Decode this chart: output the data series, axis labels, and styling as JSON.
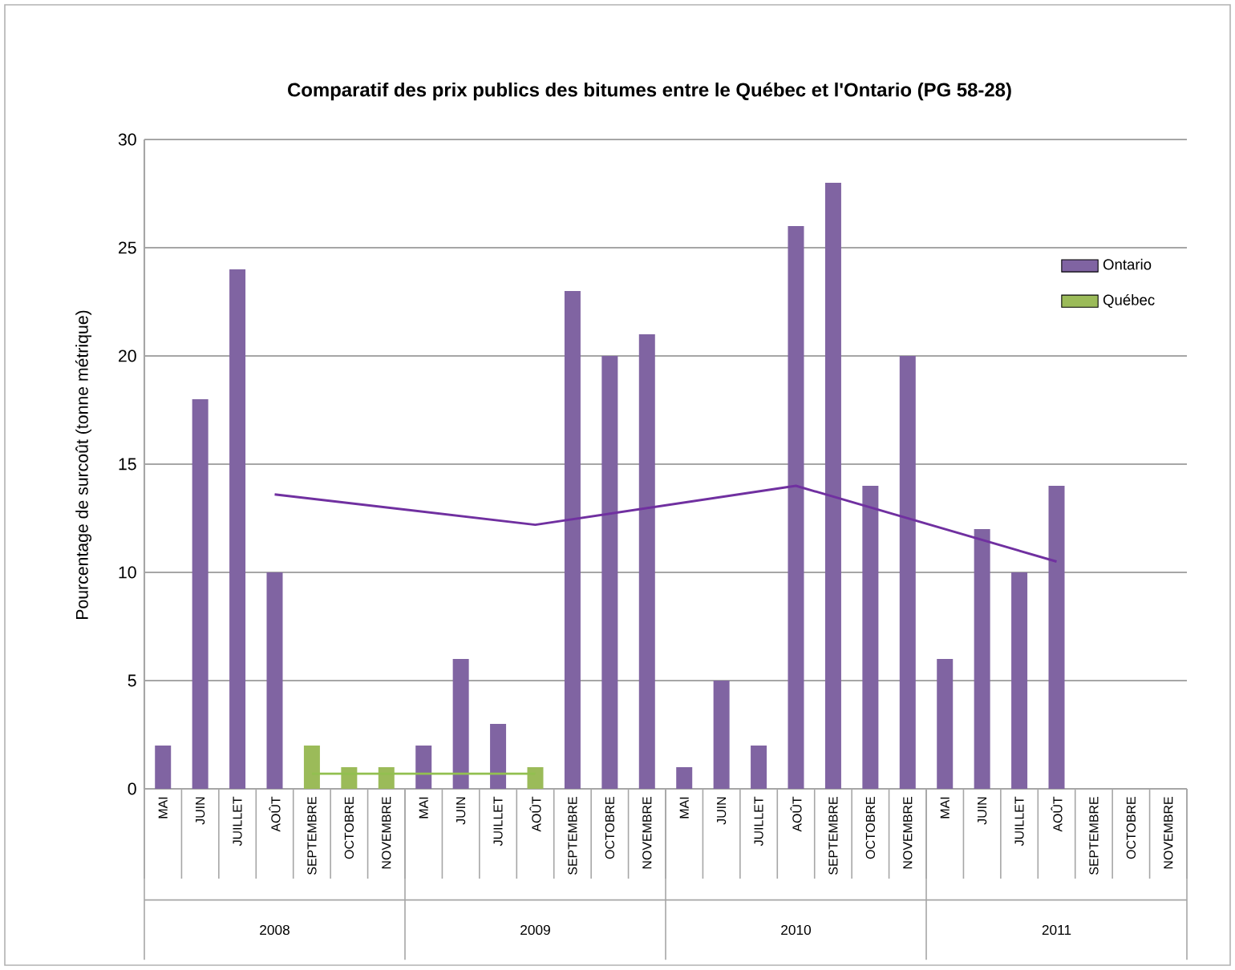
{
  "chart_data": {
    "type": "bar",
    "title": "Comparatif des prix publics des bitumes entre le Québec et l'Ontario (PG 58-28)",
    "ylabel": "Pourcentage de surcoût  (tonne métrique)",
    "categories": [
      "MAI",
      "JUIN",
      "JUILLET",
      "AOÛT",
      "SEPTEMBRE",
      "OCTOBRE",
      "NOVEMBRE",
      "MAI",
      "JUIN",
      "JUILLET",
      "AOÛT",
      "SEPTEMBRE",
      "OCTOBRE",
      "NOVEMBRE",
      "MAI",
      "JUIN",
      "JUILLET",
      "AOÛT",
      "SEPTEMBRE",
      "OCTOBRE",
      "NOVEMBRE",
      "MAI",
      "JUIN",
      "JUILLET",
      "AOÛT",
      "SEPTEMBRE",
      "OCTOBRE",
      "NOVEMBRE"
    ],
    "annotations": [
      "2008",
      "2009",
      "2010",
      "2011"
    ],
    "series": [
      {
        "name": "Ontario",
        "color": "#8064a2",
        "values": [
          2,
          18,
          24,
          10,
          null,
          null,
          null,
          2,
          6,
          3,
          null,
          23,
          20,
          21,
          1,
          5,
          2,
          26,
          28,
          14,
          20,
          6,
          12,
          10,
          14,
          null,
          null,
          null
        ]
      },
      {
        "name": "Québec",
        "color": "#9bbb59",
        "values": [
          null,
          null,
          null,
          null,
          2,
          1,
          1,
          null,
          null,
          null,
          1,
          null,
          null,
          null,
          null,
          null,
          null,
          null,
          null,
          null,
          null,
          null,
          null,
          null,
          null,
          null,
          null,
          null
        ]
      },
      {
        "type": "line",
        "color": "#7030a0",
        "values": [
          null,
          null,
          null,
          13.6,
          null,
          null,
          null,
          null,
          null,
          null,
          12.2,
          null,
          null,
          null,
          null,
          null,
          null,
          14,
          null,
          null,
          null,
          null,
          null,
          null,
          10.5,
          null,
          null,
          null
        ]
      },
      {
        "type": "line",
        "color": "#92c050",
        "values": [
          null,
          null,
          null,
          null,
          0.7,
          null,
          null,
          null,
          null,
          null,
          0.7,
          null,
          null,
          null,
          null,
          null,
          null,
          null,
          null,
          null,
          null,
          null,
          null,
          null,
          null,
          null,
          null,
          null
        ]
      }
    ],
    "ylim": [
      0,
      30
    ],
    "yticks": [
      0,
      5,
      10,
      15,
      20,
      25,
      30
    ],
    "grid": "y",
    "legend": "top right",
    "marker": "none"
  }
}
